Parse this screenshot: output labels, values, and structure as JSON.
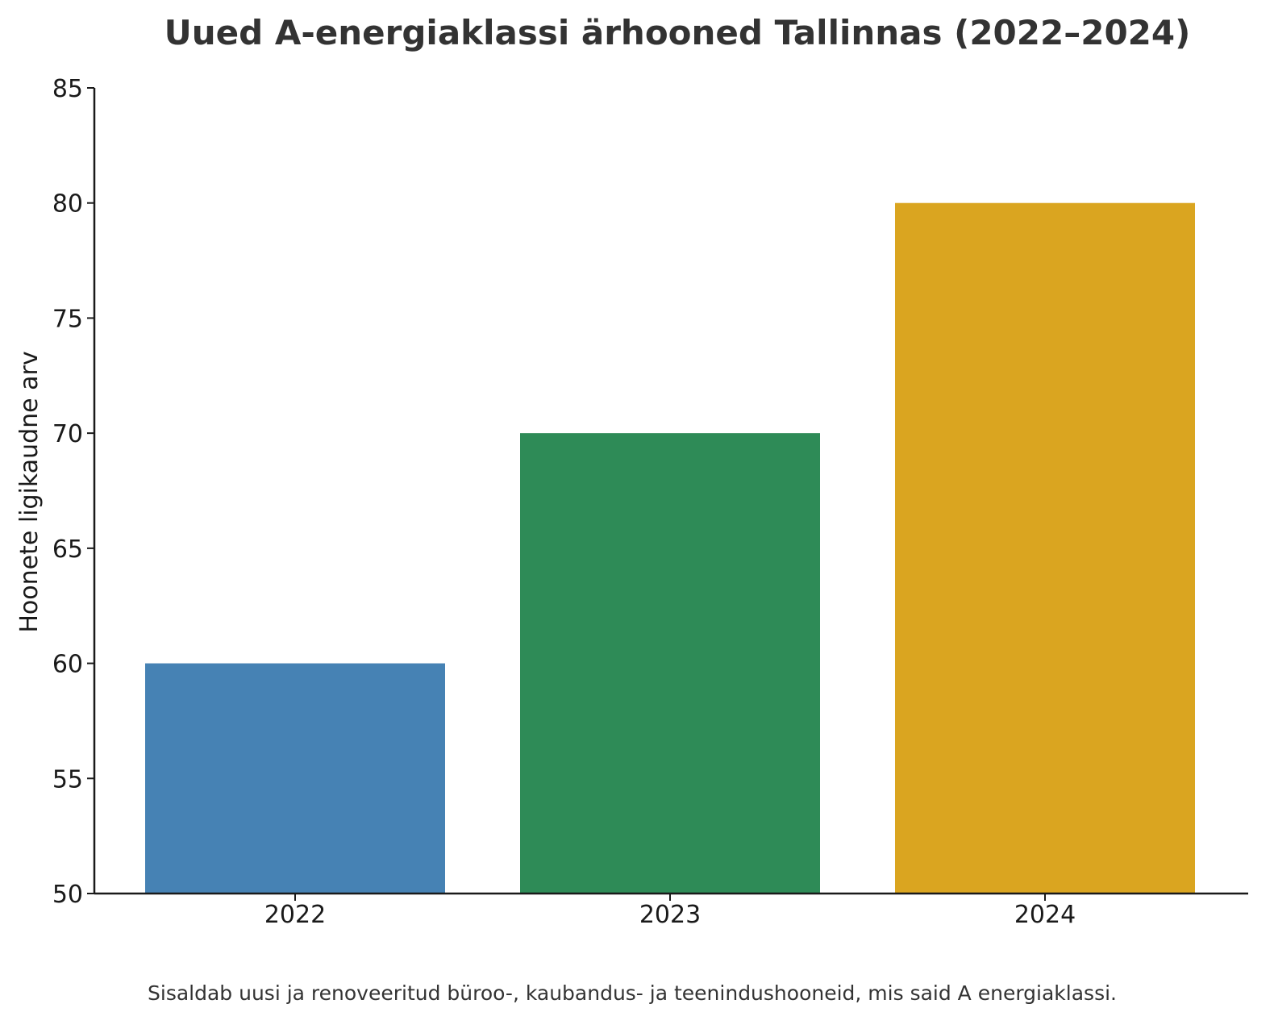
{
  "chart_data": {
    "type": "bar",
    "title": "Uued A-energiaklassi ärhooned Tallinnas (2022–2024)",
    "xlabel": "",
    "ylabel": "Hoonete ligikaudne arv",
    "categories": [
      "2022",
      "2023",
      "2024"
    ],
    "values": [
      60,
      70,
      80
    ],
    "colors": [
      "#4682b4",
      "#2e8b57",
      "#daa520"
    ],
    "ylim": [
      50,
      85
    ],
    "yticks": [
      50,
      55,
      60,
      65,
      70,
      75,
      80,
      85
    ],
    "grid": false,
    "legend": "none"
  },
  "footnote": "Sisaldab uusi ja renoveeritud büroo-, kaubandus- ja teenindushooneid, mis said A energiaklassi."
}
